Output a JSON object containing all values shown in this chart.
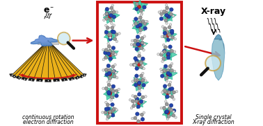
{
  "bg_color": "#ffffff",
  "red_border_color": "#cc1111",
  "arrow_color": "#cc1111",
  "detector_color": "#e8a800",
  "detector_dark": "#111111",
  "crystal_blue_light": "#88bbcc",
  "crystal_blue_mid": "#5599bb",
  "crystal_blue_dark": "#336688",
  "sample_blue": "#5588cc",
  "teal_poly": "#44ccaa",
  "teal_edge": "#22aa88",
  "atom_gray": "#999999",
  "atom_gray_edge": "#555555",
  "atom_blue": "#2244aa",
  "atom_blue_edge": "#112266",
  "atom_red": "#cc2222",
  "atom_red_edge": "#881111",
  "atom_white": "#dddddd",
  "magnifier_glass": "#cce8f0",
  "magnifier_rim": "#c8a040",
  "smoke_color": "#222222",
  "left_label_line1": "continuous rotation",
  "left_label_line2": "electron diffraction",
  "right_label_line1": "Single crystal",
  "right_label_line2": "X-ray diffraction",
  "xray_label": "X-ray",
  "electron_label": "e"
}
